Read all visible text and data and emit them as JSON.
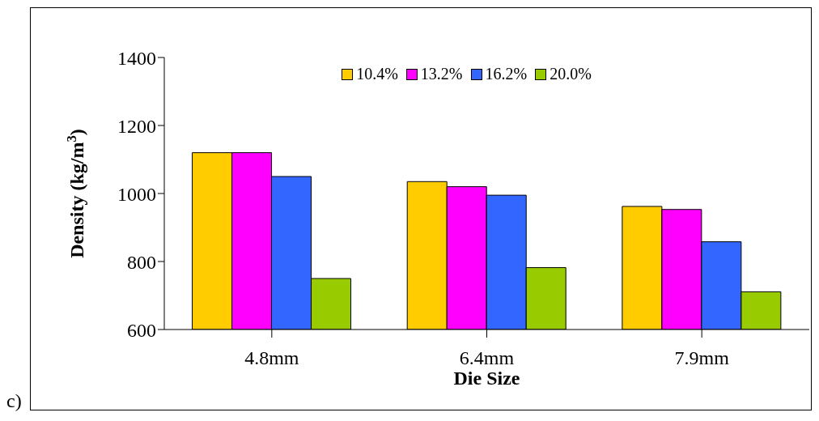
{
  "chart_data": {
    "type": "bar",
    "xlabel": "Die Size",
    "ylabel": "Density (kg/m$^{3}$)",
    "categories": [
      "4.8mm",
      "6.4mm",
      "7.9mm"
    ],
    "series": [
      {
        "name": "10.4%",
        "color": "#ffcc00",
        "values": [
          1120,
          1035,
          962
        ]
      },
      {
        "name": "13.2%",
        "color": "#ff00ff",
        "values": [
          1120,
          1020,
          953
        ]
      },
      {
        "name": "16.2%",
        "color": "#3366ff",
        "values": [
          1050,
          995,
          858
        ]
      },
      {
        "name": "20.0%",
        "color": "#99cc00",
        "values": [
          750,
          782,
          711
        ]
      }
    ],
    "ylim": [
      600,
      1400
    ],
    "yticks": [
      600,
      800,
      1000,
      1200,
      1400
    ],
    "grid": false,
    "legend": "top",
    "annotations": [
      "c)"
    ]
  }
}
